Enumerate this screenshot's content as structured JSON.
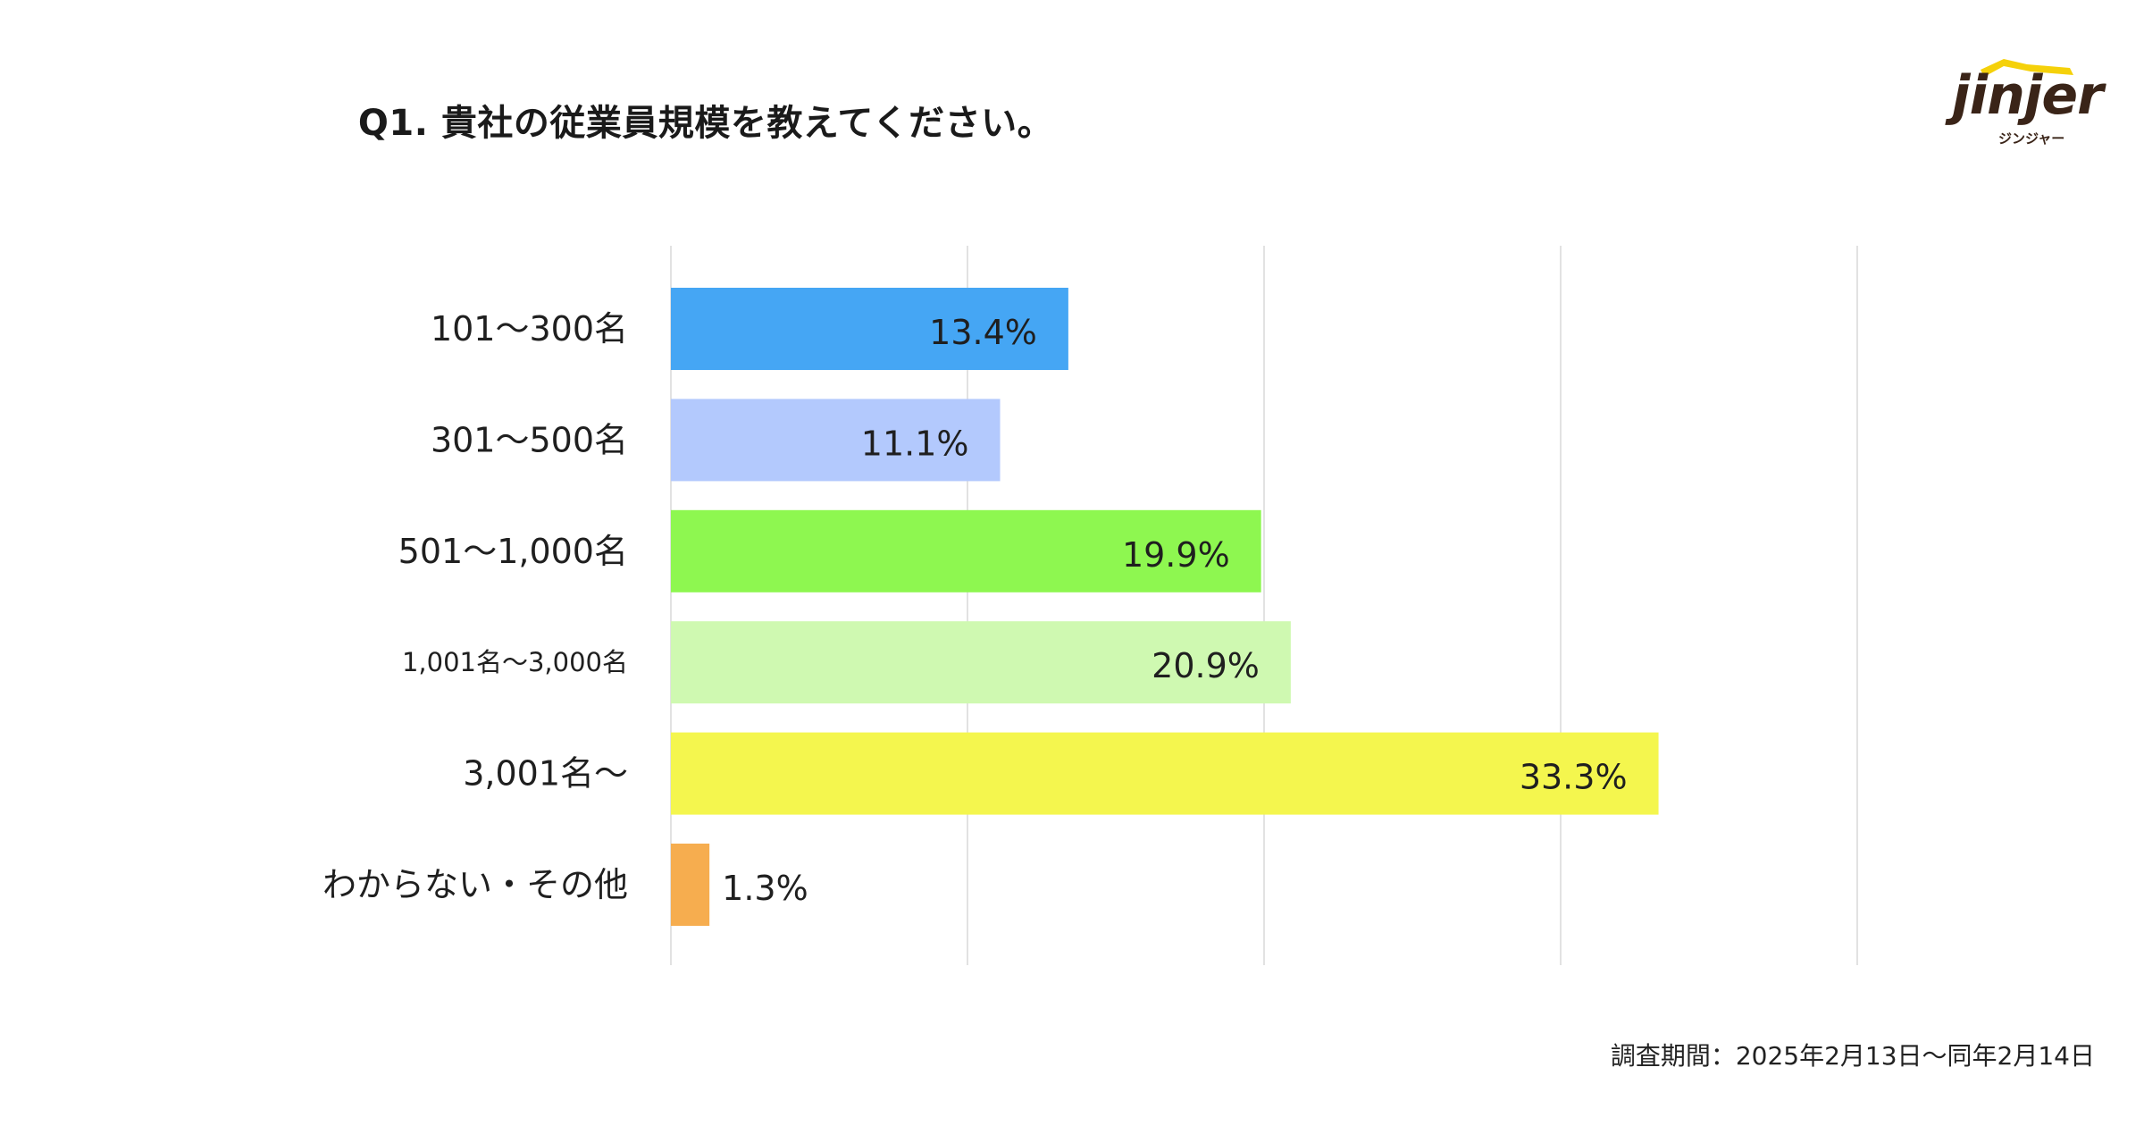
{
  "title": "Q1. 貴社の従業員規模を教えてください。",
  "survey_period": "調査期間：2025年2月13日〜同年2月14日",
  "logo": {
    "wordmark": "jinjer",
    "subtext": "ジンジャー",
    "accent_color": "#F5D10A",
    "text_color": "#3A2418"
  },
  "chart_data": {
    "type": "bar",
    "orientation": "horizontal",
    "categories": [
      "101〜300名",
      "301〜500名",
      "501〜1,000名",
      "1,001名〜3,000名",
      "3,001名〜",
      "わからない・その他"
    ],
    "values": [
      13.4,
      11.1,
      19.9,
      20.9,
      33.3,
      1.3
    ],
    "value_labels": [
      "13.4%",
      "11.1%",
      "19.9%",
      "20.9%",
      "33.3%",
      "1.3%"
    ],
    "colors": [
      "#45A6F4",
      "#B3C9FD",
      "#8EF750",
      "#CFF9B1",
      "#F4F64E",
      "#F6AD4F"
    ],
    "xlim": [
      0,
      40
    ],
    "grid": true,
    "title": "Q1. 貴社の従業員規模を教えてください。"
  }
}
